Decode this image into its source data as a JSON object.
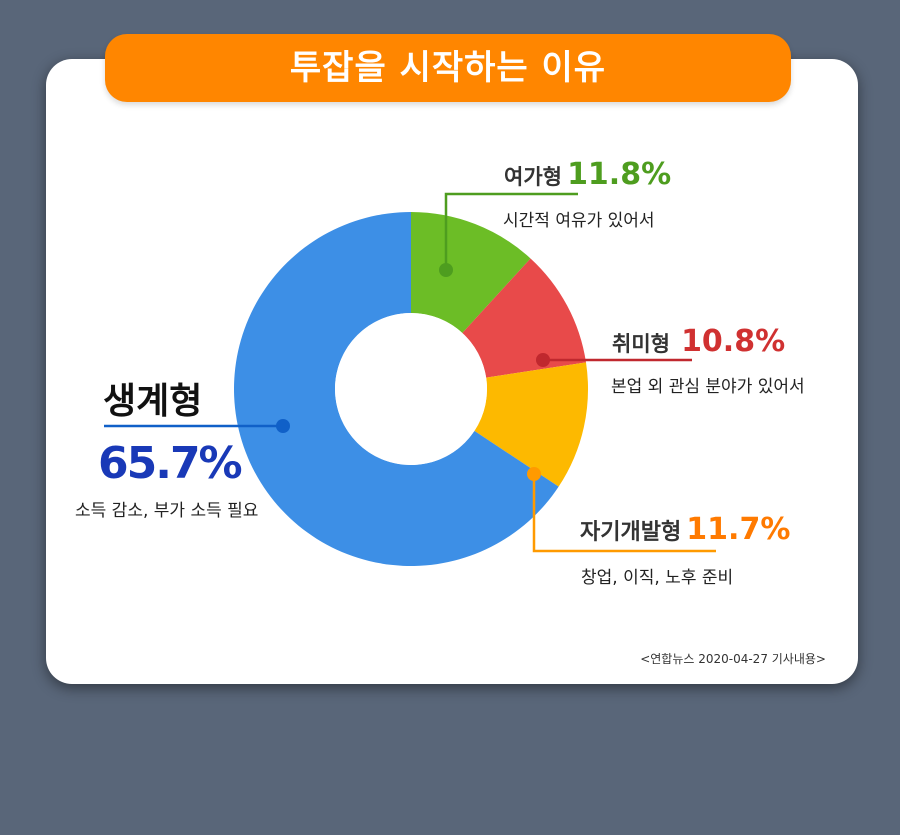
{
  "title": "투잡을 시작하는 이유",
  "source": "<연합뉴스 2020-04-27 기사내용>",
  "colors": {
    "background": "#596679",
    "banner": "#ff8600"
  },
  "chart_data": {
    "type": "pie",
    "style": "donut",
    "title": "투잡을 시작하는 이유",
    "categories": [
      "여가형",
      "취미형",
      "자기개발형",
      "생계형"
    ],
    "values": [
      11.8,
      10.8,
      11.7,
      65.7
    ],
    "value_labels": [
      "11.8%",
      "10.8%",
      "11.7%",
      "65.7%"
    ],
    "descriptions": [
      "시간적 여유가 있어서",
      "본업 외 관심 분야가 있어서",
      "창업, 이직, 노후 준비",
      "소득 감소, 부가 소득 필요"
    ],
    "colors": [
      "#6cbd26",
      "#e84a4a",
      "#fdb900",
      "#3d8fe6"
    ],
    "value_colors": [
      "#4e9d1f",
      "#d03131",
      "#ff7a00",
      "#1939b7"
    ],
    "leader_colors": [
      "#4e9d1f",
      "#c0282e",
      "#ff9a00",
      "#1060c8"
    ]
  }
}
